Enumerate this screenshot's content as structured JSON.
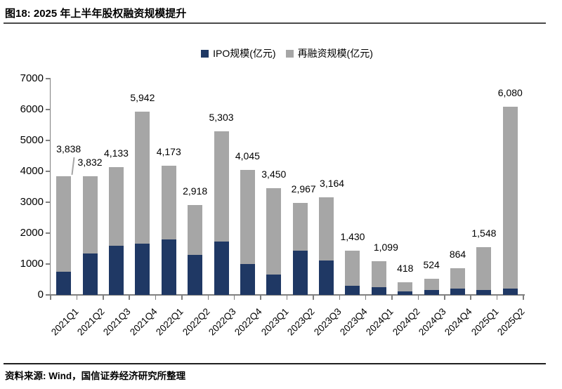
{
  "figure": {
    "title": "图18: 2025 年上半年股权融资规模提升",
    "source": "资料来源: Wind，国信证券经济研究所整理"
  },
  "chart_data": {
    "type": "bar",
    "stacked": true,
    "title": "图18: 2025 年上半年股权融资规模提升",
    "categories": [
      "2021Q1",
      "2021Q2",
      "2021Q3",
      "2021Q4",
      "2022Q1",
      "2022Q2",
      "2022Q3",
      "2022Q4",
      "2023Q1",
      "2023Q2",
      "2023Q3",
      "2023Q4",
      "2024Q1",
      "2024Q2",
      "2024Q3",
      "2024Q4",
      "2025Q1",
      "2025Q2"
    ],
    "series": [
      {
        "name": "IPO规模(亿元)",
        "color": "#1f3864",
        "values": [
          760,
          1330,
          1590,
          1670,
          1790,
          1300,
          1730,
          1000,
          650,
          1430,
          1120,
          300,
          240,
          105,
          160,
          205,
          165,
          215
        ]
      },
      {
        "name": "再融资规模(亿元)",
        "color": "#a6a6a6",
        "values": [
          3078,
          2502,
          2543,
          4272,
          2383,
          1618,
          3573,
          3045,
          2800,
          1537,
          2044,
          1130,
          859,
          313,
          364,
          659,
          1383,
          5865
        ]
      }
    ],
    "totals": [
      3838,
      3832,
      4133,
      5942,
      4173,
      2918,
      5303,
      4045,
      3450,
      2967,
      3164,
      1430,
      1099,
      418,
      524,
      864,
      1548,
      6080
    ],
    "total_labels": [
      "3,838",
      "3,832",
      "4,133",
      "5,942",
      "4,173",
      "2,918",
      "5,303",
      "4,045",
      "3,450",
      "2,967",
      "3,164",
      "1,430",
      "1,099",
      "418",
      "524",
      "864",
      "1,548",
      "6,080"
    ],
    "ylim": [
      0,
      7000
    ],
    "yticks": [
      0,
      1000,
      2000,
      3000,
      4000,
      5000,
      6000,
      7000
    ],
    "ytick_labels": [
      "0",
      "1000",
      "2000",
      "3000",
      "4000",
      "5000",
      "6000",
      "7000"
    ],
    "legend_position": "top-center",
    "grid": false,
    "axis_color": "#7f7f7f"
  }
}
